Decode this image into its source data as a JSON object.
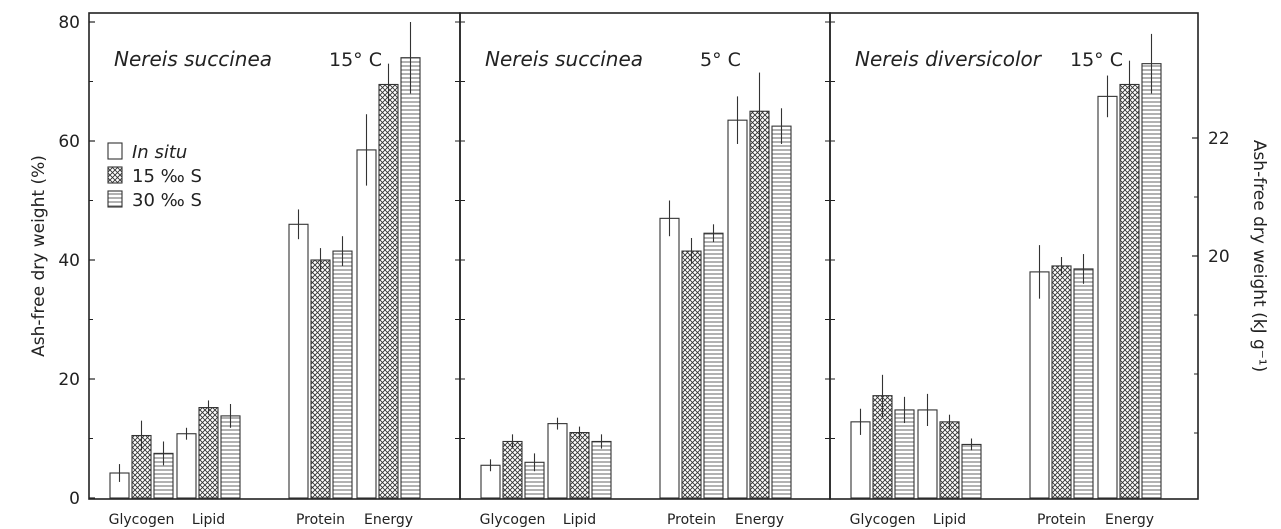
{
  "chart_data": [
    {
      "type": "bar",
      "title": "Nereis succinea",
      "title_temp": "15° C",
      "categories": [
        "Glycogen",
        "Lipid",
        "Protein",
        "Energy"
      ],
      "ylabel": "Ash-free dry weight (%)",
      "ylim": [
        0,
        100
      ],
      "yticks": [
        0,
        20,
        40,
        60,
        80
      ],
      "right_axis": {
        "label": "Ash-free dry weight (kJ g⁻¹)",
        "ticks": [
          20,
          22
        ],
        "note": "applies to Energy bars"
      },
      "legend": {
        "placement": "top-left",
        "entries": [
          "In situ",
          "15 ‰ S",
          "30 ‰ S"
        ]
      },
      "series": [
        {
          "name": "In situ",
          "pattern": "open",
          "values": [
            4.2,
            10.8,
            46.0,
            58.5
          ],
          "errors": [
            1.5,
            1.0,
            2.5,
            6.0
          ]
        },
        {
          "name": "15 ‰ S",
          "pattern": "crosshatch",
          "values": [
            10.5,
            15.2,
            40.0,
            69.5
          ],
          "errors": [
            2.5,
            1.2,
            2.0,
            3.5
          ]
        },
        {
          "name": "30 ‰ S",
          "pattern": "horizontal",
          "values": [
            7.5,
            13.8,
            41.5,
            74.0
          ],
          "errors": [
            2.0,
            2.0,
            2.5,
            6.0
          ]
        }
      ]
    },
    {
      "type": "bar",
      "title": "Nereis succinea",
      "title_temp": "5° C",
      "categories": [
        "Glycogen",
        "Lipid",
        "Protein",
        "Energy"
      ],
      "ylim": [
        0,
        100
      ],
      "series": [
        {
          "name": "In situ",
          "pattern": "open",
          "values": [
            5.5,
            12.5,
            47.0,
            63.5
          ],
          "errors": [
            1.0,
            1.0,
            3.0,
            4.0
          ]
        },
        {
          "name": "15 ‰ S",
          "pattern": "crosshatch",
          "values": [
            9.5,
            11.0,
            41.5,
            65.0
          ],
          "errors": [
            1.2,
            1.0,
            2.2,
            6.5
          ]
        },
        {
          "name": "30 ‰ S",
          "pattern": "horizontal",
          "values": [
            6.0,
            9.5,
            44.5,
            62.5
          ],
          "errors": [
            1.5,
            1.2,
            1.5,
            3.0
          ]
        }
      ]
    },
    {
      "type": "bar",
      "title": "Nereis diversicolor",
      "title_temp": "15° C",
      "categories": [
        "Glycogen",
        "Lipid",
        "Protein",
        "Energy"
      ],
      "ylim": [
        0,
        100
      ],
      "series": [
        {
          "name": "In situ",
          "pattern": "open",
          "values": [
            12.8,
            14.8,
            38.0,
            67.5
          ],
          "errors": [
            2.2,
            2.7,
            4.5,
            3.5
          ]
        },
        {
          "name": "15 ‰ S",
          "pattern": "crosshatch",
          "values": [
            17.2,
            12.8,
            39.0,
            69.5
          ],
          "errors": [
            3.5,
            1.2,
            1.5,
            4.0
          ]
        },
        {
          "name": "30 ‰ S",
          "pattern": "horizontal",
          "values": [
            14.8,
            9.0,
            38.5,
            73.0
          ],
          "errors": [
            2.2,
            1.0,
            2.5,
            5.0
          ]
        }
      ]
    }
  ]
}
